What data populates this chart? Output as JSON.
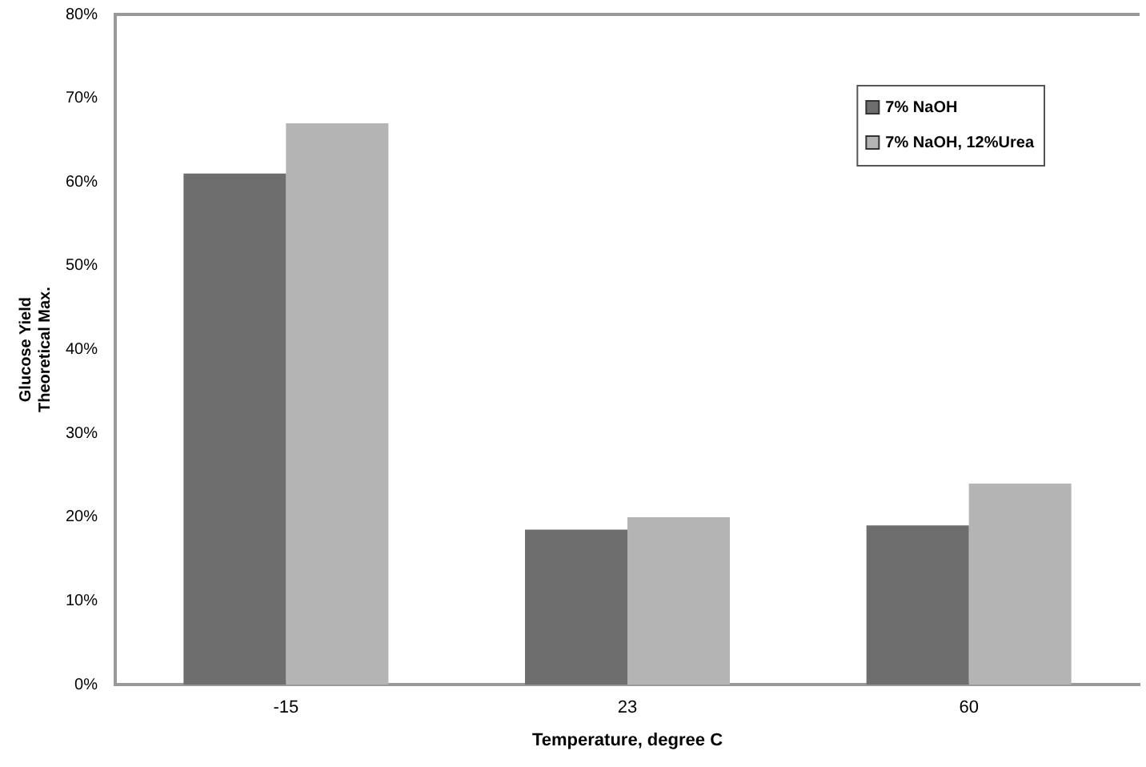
{
  "chart_data": {
    "type": "bar",
    "xlabel": "Temperature, degree C",
    "ylabel": "Glucose Yield\nTheoretical Max.",
    "categories": [
      "-15",
      "23",
      "60"
    ],
    "series": [
      {
        "name": "7% NaOH",
        "color": "#6e6e6e",
        "values": [
          61,
          18.5,
          19
        ]
      },
      {
        "name": "7% NaOH, 12%Urea",
        "color": "#b4b4b4",
        "values": [
          67,
          20,
          24
        ]
      }
    ],
    "ylim": [
      0,
      80
    ],
    "yticks": [
      {
        "value": 0,
        "label": "0%"
      },
      {
        "value": 10,
        "label": "10%"
      },
      {
        "value": 20,
        "label": "20%"
      },
      {
        "value": 30,
        "label": "30%"
      },
      {
        "value": 40,
        "label": "40%"
      },
      {
        "value": 50,
        "label": "50%"
      },
      {
        "value": 60,
        "label": "60%"
      },
      {
        "value": 70,
        "label": "70%"
      },
      {
        "value": 80,
        "label": "80%"
      }
    ],
    "grid": false,
    "legend": "top right"
  }
}
